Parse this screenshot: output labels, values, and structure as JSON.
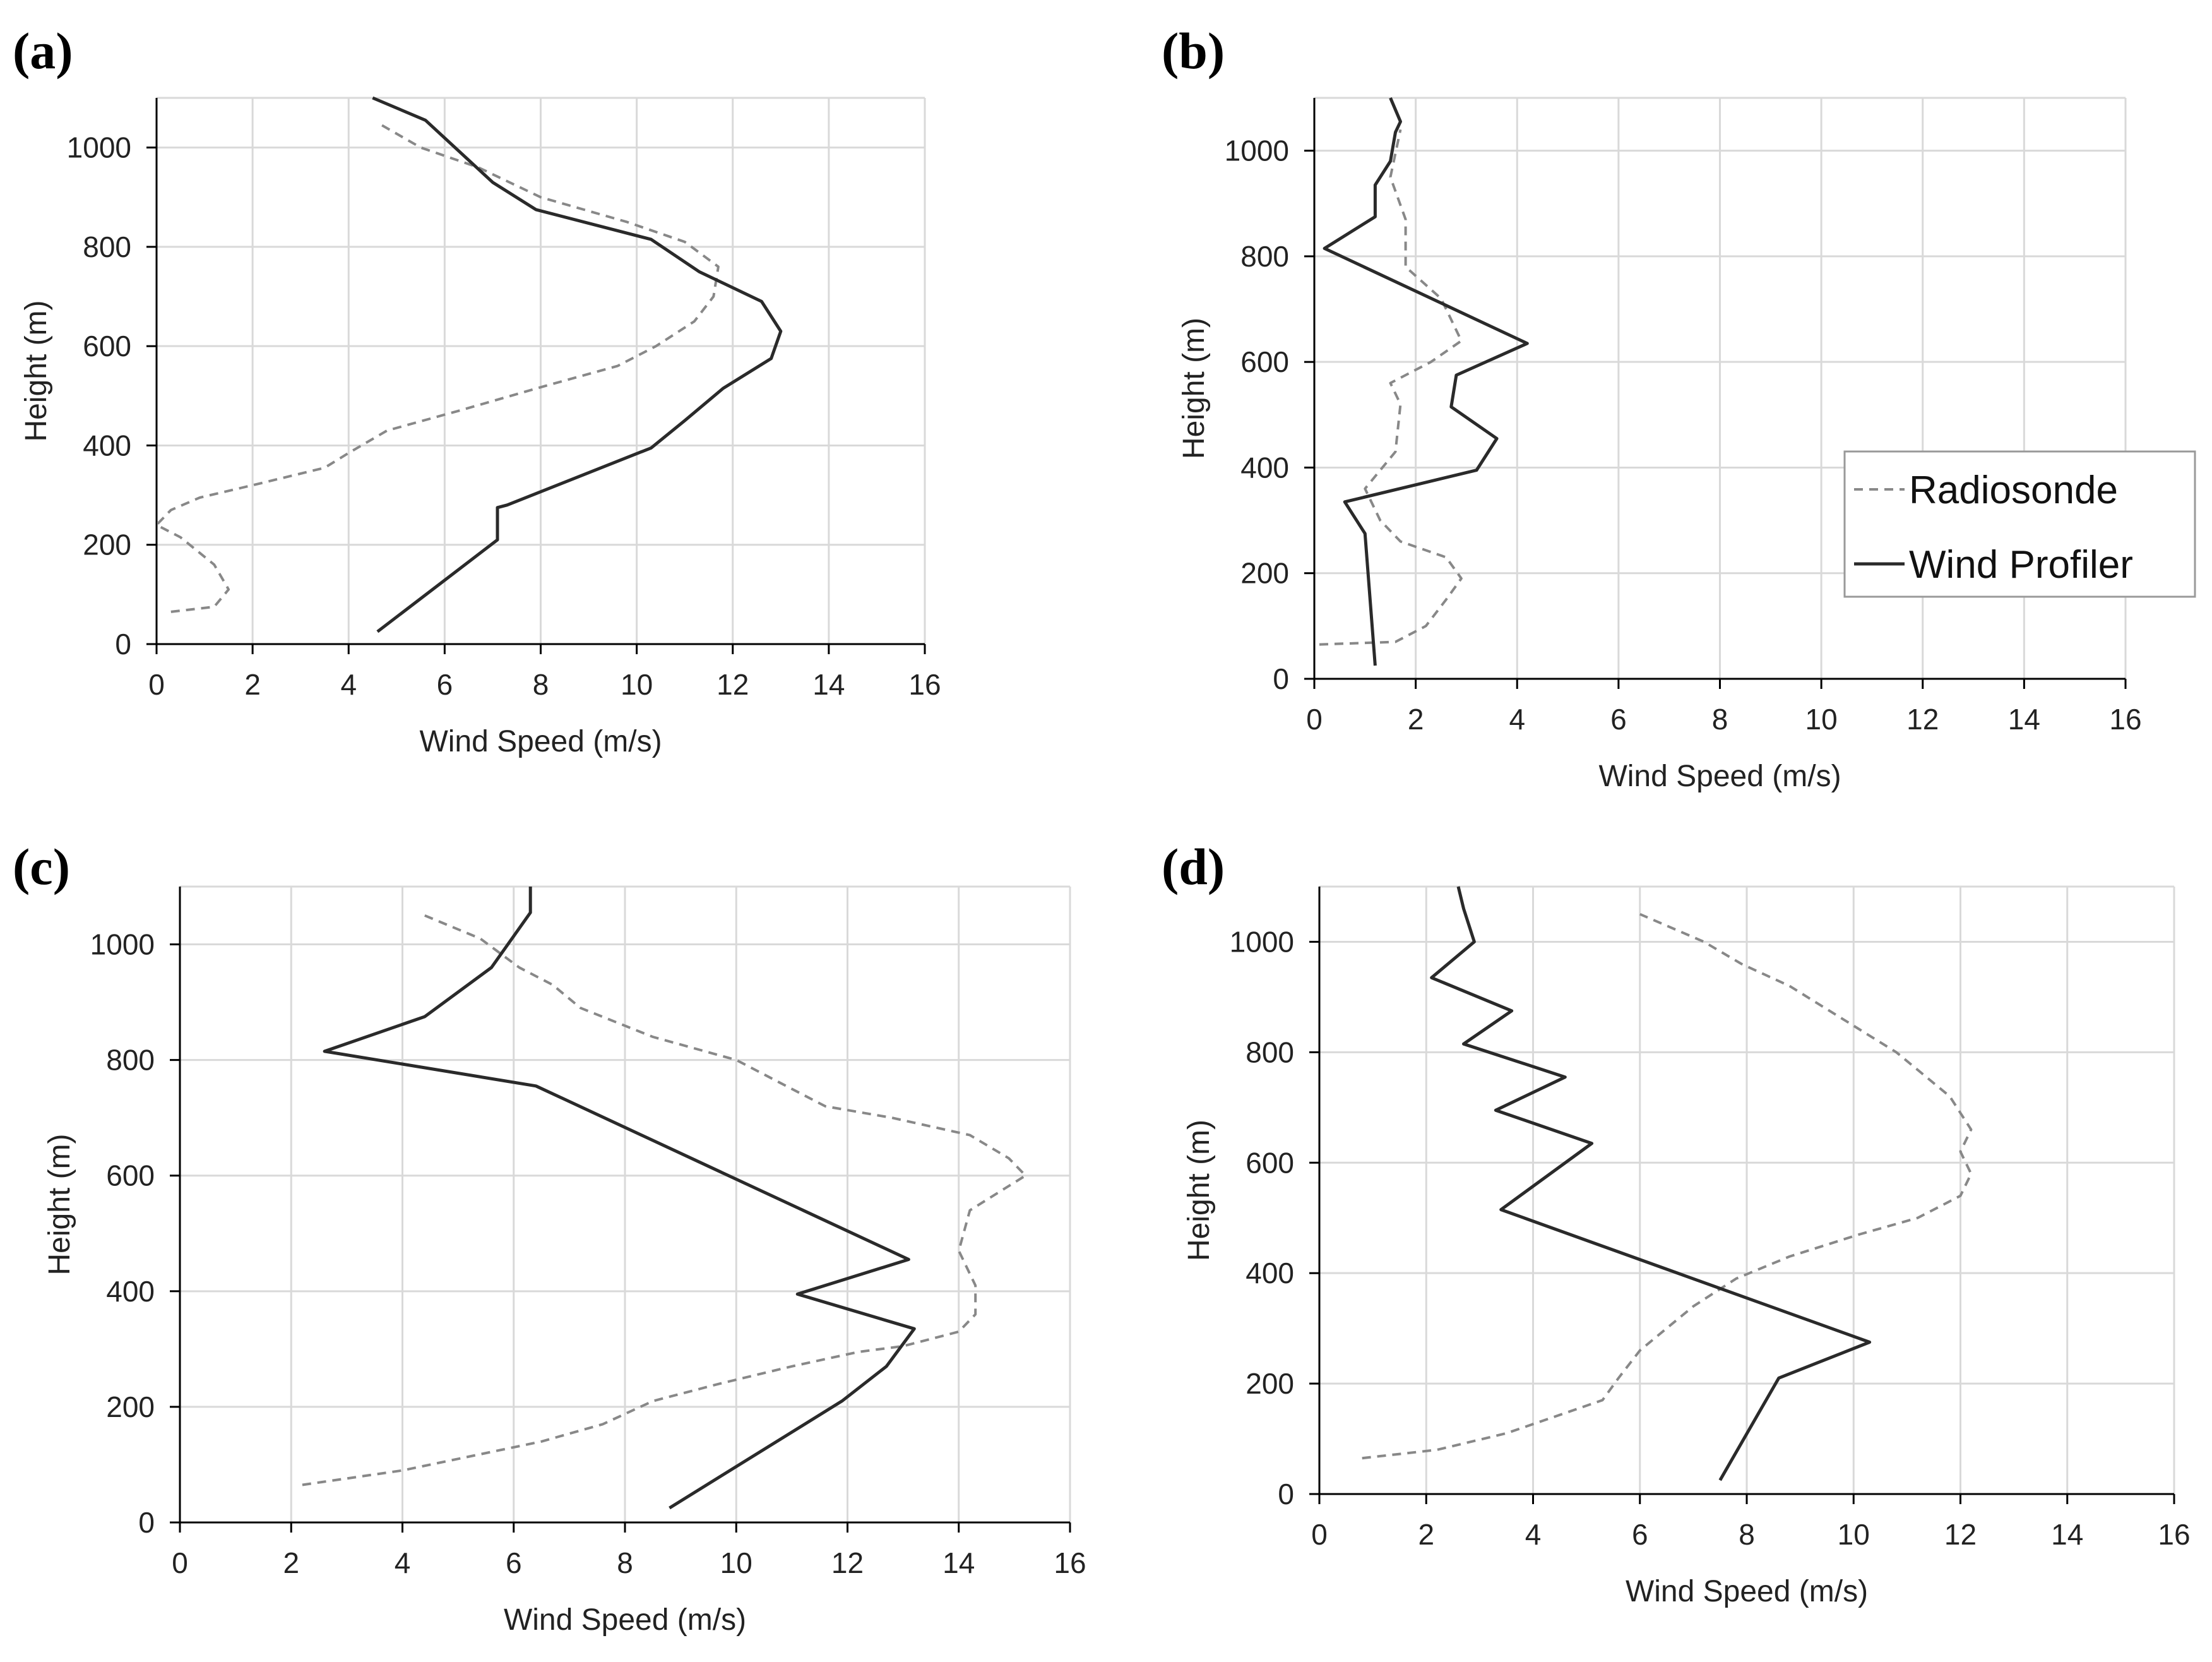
{
  "figure": {
    "series_styles": {
      "radiosonde": {
        "color": "#888888",
        "dashed": true
      },
      "profiler": {
        "color": "#2a2a2a",
        "dashed": false
      }
    }
  },
  "chart_data": [
    {
      "panel_label": "(a)",
      "type": "line",
      "xlabel": "Wind Speed (m/s)",
      "ylabel": "Height (m)",
      "xlim": [
        0,
        16
      ],
      "ylim": [
        0,
        1100
      ],
      "xticks": [
        "0",
        "2",
        "4",
        "6",
        "8",
        "10",
        "12",
        "14",
        "16"
      ],
      "yticks": [
        "0",
        "200",
        "400",
        "600",
        "800",
        "1000"
      ],
      "grid": true,
      "series": [
        {
          "name": "Radiosonde",
          "points": [
            [
              0.3,
              65
            ],
            [
              1.2,
              75
            ],
            [
              1.5,
              110
            ],
            [
              1.2,
              160
            ],
            [
              0.5,
              215
            ],
            [
              0.0,
              240
            ],
            [
              0.3,
              270
            ],
            [
              0.9,
              295
            ],
            [
              2.0,
              320
            ],
            [
              3.5,
              355
            ],
            [
              4.0,
              385
            ],
            [
              4.8,
              430
            ],
            [
              6.3,
              470
            ],
            [
              8.1,
              520
            ],
            [
              9.6,
              560
            ],
            [
              10.4,
              600
            ],
            [
              11.2,
              650
            ],
            [
              11.6,
              700
            ],
            [
              11.7,
              760
            ],
            [
              11.0,
              810
            ],
            [
              9.8,
              850
            ],
            [
              8.0,
              900
            ],
            [
              6.7,
              960
            ],
            [
              5.5,
              1000
            ],
            [
              4.6,
              1050
            ]
          ]
        },
        {
          "name": "Wind Profiler",
          "points": [
            [
              4.6,
              25
            ],
            [
              7.1,
              210
            ],
            [
              7.1,
              275
            ],
            [
              7.3,
              280
            ],
            [
              10.3,
              395
            ],
            [
              11.0,
              450
            ],
            [
              11.8,
              515
            ],
            [
              12.8,
              575
            ],
            [
              13.0,
              630
            ],
            [
              12.6,
              690
            ],
            [
              11.3,
              750
            ],
            [
              10.3,
              815
            ],
            [
              7.9,
              875
            ],
            [
              7.0,
              930
            ],
            [
              5.6,
              1055
            ],
            [
              4.5,
              1100
            ]
          ]
        }
      ]
    },
    {
      "panel_label": "(b)",
      "type": "line",
      "xlabel": "Wind Speed (m/s)",
      "ylabel": "Height (m)",
      "xlim": [
        0,
        16
      ],
      "ylim": [
        0,
        1100
      ],
      "xticks": [
        "0",
        "2",
        "4",
        "6",
        "8",
        "10",
        "12",
        "14",
        "16"
      ],
      "yticks": [
        "0",
        "200",
        "400",
        "600",
        "800",
        "1000"
      ],
      "grid": true,
      "legend": {
        "position": "right",
        "entries": [
          "Radiosonde",
          "Wind Profiler"
        ]
      },
      "series": [
        {
          "name": "Radiosonde",
          "points": [
            [
              0.1,
              65
            ],
            [
              1.6,
              70
            ],
            [
              2.2,
              100
            ],
            [
              2.6,
              150
            ],
            [
              2.9,
              190
            ],
            [
              2.6,
              230
            ],
            [
              1.7,
              260
            ],
            [
              1.3,
              300
            ],
            [
              1.0,
              360
            ],
            [
              1.6,
              430
            ],
            [
              1.7,
              520
            ],
            [
              1.5,
              560
            ],
            [
              2.3,
              600
            ],
            [
              2.9,
              640
            ],
            [
              2.5,
              720
            ],
            [
              1.8,
              780
            ],
            [
              1.8,
              870
            ],
            [
              1.5,
              950
            ],
            [
              1.7,
              1040
            ]
          ]
        },
        {
          "name": "Wind Profiler",
          "points": [
            [
              1.2,
              25
            ],
            [
              1.0,
              275
            ],
            [
              0.6,
              335
            ],
            [
              3.2,
              395
            ],
            [
              3.6,
              455
            ],
            [
              2.7,
              515
            ],
            [
              2.8,
              575
            ],
            [
              4.2,
              635
            ],
            [
              0.2,
              815
            ],
            [
              1.2,
              875
            ],
            [
              1.2,
              935
            ],
            [
              1.5,
              980
            ],
            [
              1.6,
              1035
            ],
            [
              1.7,
              1055
            ],
            [
              1.5,
              1100
            ]
          ]
        }
      ]
    },
    {
      "panel_label": "(c)",
      "type": "line",
      "xlabel": "Wind Speed (m/s)",
      "ylabel": "Height (m)",
      "xlim": [
        0,
        16
      ],
      "ylim": [
        0,
        1100
      ],
      "xticks": [
        "0",
        "2",
        "4",
        "6",
        "8",
        "10",
        "12",
        "14",
        "16"
      ],
      "yticks": [
        "0",
        "200",
        "400",
        "600",
        "800",
        "1000"
      ],
      "grid": true,
      "series": [
        {
          "name": "Radiosonde",
          "points": [
            [
              2.2,
              65
            ],
            [
              4.0,
              90
            ],
            [
              5.0,
              110
            ],
            [
              6.5,
              140
            ],
            [
              7.6,
              170
            ],
            [
              8.5,
              210
            ],
            [
              9.7,
              240
            ],
            [
              11.0,
              270
            ],
            [
              12.2,
              295
            ],
            [
              13.0,
              305
            ],
            [
              14.0,
              330
            ],
            [
              14.3,
              360
            ],
            [
              14.3,
              410
            ],
            [
              14.0,
              470
            ],
            [
              14.2,
              540
            ],
            [
              14.7,
              570
            ],
            [
              15.2,
              600
            ],
            [
              14.9,
              630
            ],
            [
              14.2,
              670
            ],
            [
              12.8,
              700
            ],
            [
              11.6,
              720
            ],
            [
              10.8,
              760
            ],
            [
              10.0,
              800
            ],
            [
              8.5,
              840
            ],
            [
              7.2,
              890
            ],
            [
              6.7,
              930
            ],
            [
              6.1,
              960
            ],
            [
              5.4,
              1010
            ],
            [
              4.4,
              1050
            ]
          ]
        },
        {
          "name": "Wind Profiler",
          "points": [
            [
              8.8,
              25
            ],
            [
              11.9,
              210
            ],
            [
              12.7,
              270
            ],
            [
              13.2,
              335
            ],
            [
              11.1,
              395
            ],
            [
              13.1,
              455
            ],
            [
              6.4,
              755
            ],
            [
              2.6,
              815
            ],
            [
              4.4,
              875
            ],
            [
              5.6,
              960
            ],
            [
              6.3,
              1055
            ],
            [
              6.3,
              1100
            ]
          ]
        }
      ]
    },
    {
      "panel_label": "(d)",
      "type": "line",
      "xlabel": "Wind Speed (m/s)",
      "ylabel": "Height (m)",
      "xlim": [
        0,
        16
      ],
      "ylim": [
        0,
        1100
      ],
      "xticks": [
        "0",
        "2",
        "4",
        "6",
        "8",
        "10",
        "12",
        "14",
        "16"
      ],
      "yticks": [
        "0",
        "200",
        "400",
        "600",
        "800",
        "1000"
      ],
      "grid": true,
      "series": [
        {
          "name": "Radiosonde",
          "points": [
            [
              0.8,
              65
            ],
            [
              2.2,
              80
            ],
            [
              3.5,
              110
            ],
            [
              4.4,
              140
            ],
            [
              5.3,
              170
            ],
            [
              5.6,
              210
            ],
            [
              6.0,
              260
            ],
            [
              6.5,
              300
            ],
            [
              7.0,
              340
            ],
            [
              7.8,
              390
            ],
            [
              8.8,
              430
            ],
            [
              10.1,
              470
            ],
            [
              11.2,
              500
            ],
            [
              12.0,
              540
            ],
            [
              12.2,
              580
            ],
            [
              12.0,
              620
            ],
            [
              12.2,
              660
            ],
            [
              11.8,
              720
            ],
            [
              10.8,
              800
            ],
            [
              9.8,
              860
            ],
            [
              8.8,
              920
            ],
            [
              7.9,
              960
            ],
            [
              7.2,
              1000
            ],
            [
              6.0,
              1050
            ]
          ]
        },
        {
          "name": "Wind Profiler",
          "points": [
            [
              7.5,
              25
            ],
            [
              8.6,
              210
            ],
            [
              10.3,
              275
            ],
            [
              3.4,
              515
            ],
            [
              5.1,
              635
            ],
            [
              3.3,
              695
            ],
            [
              4.6,
              755
            ],
            [
              2.7,
              815
            ],
            [
              3.6,
              875
            ],
            [
              2.1,
              935
            ],
            [
              2.9,
              1000
            ],
            [
              2.7,
              1060
            ],
            [
              2.6,
              1100
            ]
          ]
        }
      ]
    }
  ]
}
